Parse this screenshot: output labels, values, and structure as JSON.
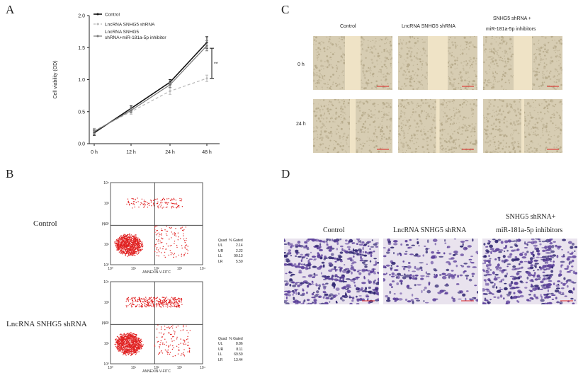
{
  "panels": {
    "a": "A",
    "b": "B",
    "c": "C",
    "d": "D"
  },
  "chart_data": {
    "type": "line",
    "x": [
      "0 h",
      "12 h",
      "24 h",
      "48 h"
    ],
    "ylabel": "Cell viability (OD)",
    "yticks": [
      "0.0",
      "0.5",
      "1.0",
      "1.5",
      "2.0"
    ],
    "ylim": [
      0,
      2.0
    ],
    "significance": "**",
    "legend_placement": "top-left",
    "series": [
      {
        "name": "Control",
        "values": [
          0.17,
          0.55,
          0.96,
          1.58
        ],
        "errors": [
          0.04,
          0.04,
          0.04,
          0.09
        ],
        "color": "#111111",
        "dash": "solid"
      },
      {
        "name": "LncRNA SNHG5 shRNA",
        "values": [
          0.2,
          0.5,
          0.82,
          1.02
        ],
        "errors": [
          0.04,
          0.04,
          0.05,
          0.05
        ],
        "color": "#b8b8b8",
        "dash": "dashed"
      },
      {
        "name": "LncRNA SNHG5 shRNA+miR-181a-5p inhibitor",
        "values": [
          0.19,
          0.52,
          0.92,
          1.53
        ],
        "errors": [
          0.04,
          0.04,
          0.04,
          0.08
        ],
        "color": "#777777",
        "dash": "solid"
      }
    ]
  },
  "legend": {
    "l1": "Control",
    "l2": "LncRNA SNHG5 shRNA",
    "l3a": "LncRNA SNHG5",
    "l3b": "shRNA+miR-181a-5p inhibitor"
  },
  "wound": {
    "cols": [
      "Control",
      "LncRNA SNHG5 shRNA",
      "SNHG5 shRNA +",
      "miR-181a-5p inhibitors"
    ],
    "rows": [
      "0 h",
      "24 h"
    ]
  },
  "flow": {
    "row1": "Control",
    "row2": "LncRNA SNHG5 shRNA",
    "xlabel": "ANNEXIN-V-FITC",
    "ylabel": "PI",
    "ticks_x": [
      "10⁰",
      "10¹",
      "10²",
      "10³",
      "10⁴"
    ],
    "ticks_y": [
      "10⁰",
      "10¹",
      "10²",
      "10³",
      "10⁴"
    ],
    "table_head": [
      "Quad",
      "% Gated"
    ],
    "table1": [
      [
        "UL",
        "2.14"
      ],
      [
        "UR",
        "2.22"
      ],
      [
        "LL",
        "90.13"
      ],
      [
        "LR",
        "5.50"
      ]
    ],
    "table2": [
      [
        "UL",
        "8.86"
      ],
      [
        "UR",
        "8.11"
      ],
      [
        "LL",
        "69.59"
      ],
      [
        "LR",
        "13.44"
      ]
    ]
  },
  "transwell": {
    "c1": "Control",
    "c2": "LncRNA SNHG5 shRNA",
    "c3a": "SNHG5 shRNA+",
    "c3b": "miR-181a-5p inhibitors"
  }
}
